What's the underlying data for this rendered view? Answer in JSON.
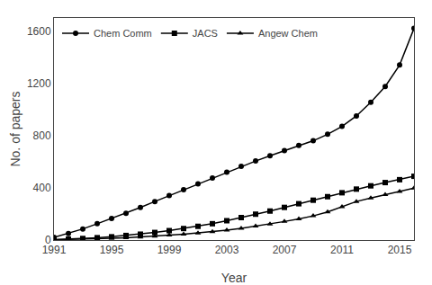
{
  "chart_data": {
    "type": "line",
    "x_label": "Year",
    "y_label": "No. of papers",
    "x": [
      1991,
      1992,
      1993,
      1994,
      1995,
      1996,
      1997,
      1998,
      1999,
      2000,
      2001,
      2002,
      2003,
      2004,
      2005,
      2006,
      2007,
      2008,
      2009,
      2010,
      2011,
      2012,
      2013,
      2014,
      2015,
      2016
    ],
    "series": [
      {
        "name": "Chem Comm",
        "color": "#000000",
        "marker": "circle",
        "values": [
          20,
          50,
          85,
          125,
          165,
          205,
          250,
          295,
          340,
          385,
          430,
          475,
          520,
          565,
          605,
          645,
          685,
          725,
          760,
          810,
          870,
          950,
          1055,
          1175,
          1340,
          1620
        ]
      },
      {
        "name": "JACS",
        "color": "#000000",
        "marker": "square",
        "values": [
          3,
          7,
          12,
          18,
          25,
          35,
          45,
          58,
          72,
          88,
          105,
          125,
          148,
          172,
          198,
          222,
          250,
          278,
          305,
          332,
          362,
          390,
          415,
          440,
          462,
          488
        ]
      },
      {
        "name": "Angew Chem",
        "color": "#000000",
        "marker": "triangle-up",
        "values": [
          2,
          4,
          7,
          10,
          14,
          18,
          23,
          30,
          37,
          45,
          54,
          63,
          75,
          90,
          106,
          122,
          142,
          162,
          185,
          215,
          255,
          295,
          322,
          348,
          372,
          398
        ]
      }
    ],
    "xlim": [
      1991,
      2016
    ],
    "xticks": [
      1991,
      1995,
      1999,
      2003,
      2007,
      2011,
      2015
    ],
    "ylim": [
      0,
      1700
    ],
    "yticks": [
      0,
      400,
      800,
      1200,
      1600
    ],
    "grid": false,
    "legend": "upper left"
  }
}
